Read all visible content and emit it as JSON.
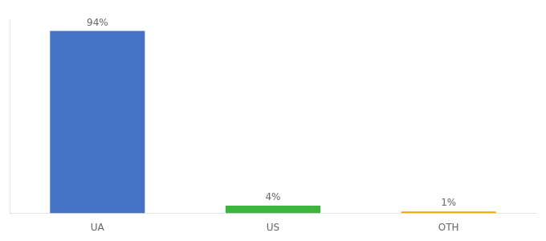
{
  "chart_data": {
    "type": "bar",
    "categories": [
      "UA",
      "US",
      "OTH"
    ],
    "values": [
      94,
      4,
      1
    ],
    "value_labels": [
      "94%",
      "4%",
      "1%"
    ],
    "data_labels": true,
    "colors": [
      "#4472c4",
      "#3db53d",
      "#f0a800"
    ],
    "ylim": [
      0,
      100
    ],
    "grid": false,
    "tick_labels": "x"
  }
}
